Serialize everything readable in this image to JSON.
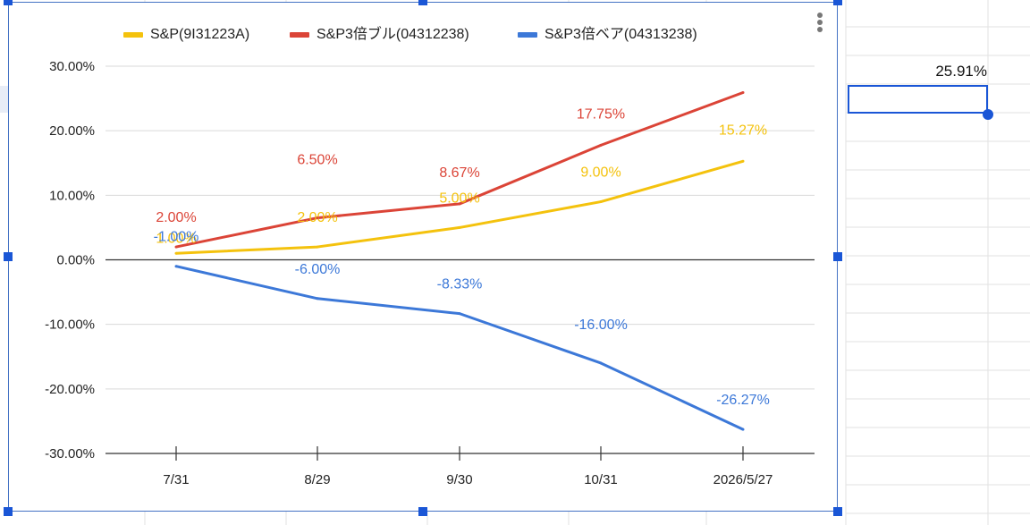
{
  "chart_data": {
    "type": "line",
    "categories": [
      "7/31",
      "8/29",
      "9/30",
      "10/31",
      "2026/5/27"
    ],
    "series": [
      {
        "name": "S&P(9I31223A)",
        "color": "#f4c20d",
        "values": [
          1.0,
          2.0,
          5.0,
          9.0,
          15.27
        ],
        "labels": [
          "1.00%",
          "2.00%",
          "5.00%",
          "9.00%",
          "15.27%"
        ]
      },
      {
        "name": "S&P3倍ブル(04312238)",
        "color": "#db4437",
        "values": [
          2.0,
          6.5,
          8.67,
          17.75,
          25.91
        ],
        "labels": [
          "2.00%",
          "6.50%",
          "8.67%",
          "17.75%",
          ""
        ]
      },
      {
        "name": "S&P3倍ベア(04313238)",
        "color": "#3c78d8",
        "values": [
          -1.0,
          -6.0,
          -8.33,
          -16.0,
          -26.27
        ],
        "labels": [
          "-1.00%",
          "-6.00%",
          "-8.33%",
          "-16.00%",
          "-26.27%"
        ]
      }
    ],
    "y_ticks": [
      "30.00%",
      "20.00%",
      "10.00%",
      "0.00%",
      "-10.00%",
      "-20.00%",
      "-30.00%"
    ],
    "ylim": [
      -30,
      30
    ],
    "grid": true,
    "legend_position": "top"
  },
  "sheet": {
    "selected_cell_value": "25.91%"
  },
  "chart_menu": {
    "icon": "more-vert-icon"
  }
}
